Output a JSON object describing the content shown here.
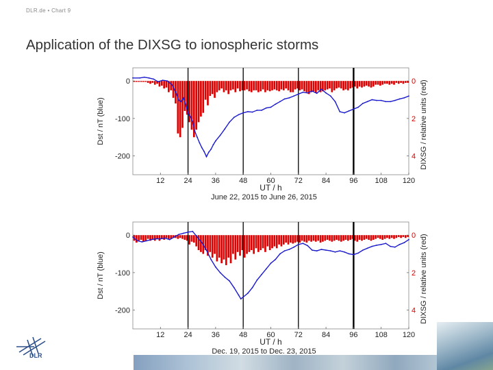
{
  "header": {
    "breadcrumb": "DLR.de  •  Chart 9",
    "title": "Application of the DIXSG to ionospheric storms"
  },
  "colors": {
    "dst": "#1a1acc",
    "dixsg": "#dd0000",
    "event": "#000000"
  },
  "logo": {
    "name": "dlr-logo",
    "text": "DLR"
  },
  "chart_data": [
    {
      "type": "line",
      "subtitle": "June 22, 2015 to June 26, 2015",
      "xlabel": "UT / h",
      "ylabel_left": "Dst / nT (blue)",
      "ylabel_right": "DIXSG / relative units (red)",
      "xlim": [
        0,
        120
      ],
      "xticks": [
        "12",
        "24",
        "36",
        "48",
        "60",
        "72",
        "84",
        "96",
        "108",
        "120"
      ],
      "ylim_left": [
        -250,
        35
      ],
      "yticks_left": [
        "0",
        "-100",
        "-200"
      ],
      "ylim_right": [
        5,
        -0.7
      ],
      "yticks_right": [
        "0",
        "2",
        "4"
      ],
      "event_lines": [
        24,
        48,
        72,
        96
      ],
      "series": [
        {
          "axis": "left",
          "kind": "line",
          "x": [
            0,
            3,
            5,
            7,
            9,
            11,
            13,
            15,
            17,
            18,
            19,
            20,
            21,
            22,
            23,
            24,
            25,
            26,
            27,
            28,
            29,
            30,
            31,
            32,
            33,
            34,
            35,
            36,
            38,
            40,
            42,
            44,
            46,
            48,
            50,
            52,
            54,
            56,
            58,
            60,
            62,
            64,
            66,
            68,
            70,
            72,
            74,
            76,
            78,
            80,
            82,
            84,
            86,
            88,
            90,
            92,
            94,
            96,
            98,
            100,
            102,
            104,
            106,
            108,
            110,
            112,
            114,
            116,
            118,
            120
          ],
          "y": [
            8,
            8,
            10,
            8,
            5,
            -2,
            2,
            0,
            -10,
            -22,
            -35,
            -52,
            -55,
            -45,
            -62,
            -86,
            -95,
            -108,
            -135,
            -150,
            -165,
            -178,
            -188,
            -202,
            -190,
            -182,
            -170,
            -160,
            -145,
            -128,
            -110,
            -97,
            -90,
            -85,
            -82,
            -83,
            -78,
            -78,
            -72,
            -70,
            -62,
            -55,
            -48,
            -45,
            -40,
            -35,
            -30,
            -32,
            -27,
            -33,
            -22,
            -32,
            -40,
            -55,
            -82,
            -85,
            -80,
            -75,
            -70,
            -60,
            -55,
            -50,
            -52,
            -52,
            -55,
            -55,
            -52,
            -48,
            -45,
            -40
          ]
        },
        {
          "axis": "right",
          "kind": "bar",
          "x": [
            1,
            2,
            3,
            4,
            5,
            6,
            7,
            8,
            9,
            10,
            11,
            12,
            13,
            14,
            15,
            16,
            17,
            18,
            19,
            20,
            21,
            22,
            23,
            24,
            25,
            26,
            27,
            28,
            29,
            30,
            31,
            32,
            33,
            34,
            35,
            36,
            37,
            38,
            39,
            40,
            41,
            42,
            43,
            44,
            45,
            46,
            47,
            48,
            49,
            50,
            51,
            52,
            53,
            54,
            55,
            56,
            57,
            58,
            59,
            60,
            61,
            62,
            63,
            64,
            65,
            66,
            67,
            68,
            69,
            70,
            71,
            72,
            73,
            74,
            75,
            76,
            77,
            78,
            79,
            80,
            81,
            82,
            83,
            84,
            85,
            86,
            87,
            88,
            89,
            90,
            91,
            92,
            93,
            94,
            95,
            96,
            97,
            98,
            99,
            100,
            101,
            102,
            103,
            104,
            105,
            106,
            107,
            108,
            109,
            110,
            111,
            112,
            113,
            114,
            115,
            116,
            117,
            118,
            119,
            120
          ],
          "y": [
            0.05,
            0.05,
            0.05,
            0.05,
            0.05,
            0.05,
            0.1,
            0.15,
            0.1,
            0.2,
            0.15,
            0.3,
            0.25,
            0.4,
            0.35,
            0.6,
            0.5,
            0.9,
            1.2,
            2.8,
            3.0,
            2.5,
            1.6,
            1.8,
            2.2,
            2.6,
            3.0,
            2.6,
            2.2,
            1.9,
            1.7,
            1.0,
            1.3,
            0.8,
            0.7,
            0.9,
            0.6,
            0.5,
            0.4,
            0.6,
            0.5,
            0.7,
            0.5,
            0.45,
            0.6,
            0.4,
            0.55,
            0.5,
            0.5,
            0.45,
            0.55,
            0.6,
            0.5,
            0.5,
            0.6,
            0.55,
            0.45,
            0.6,
            0.5,
            0.55,
            0.5,
            0.45,
            0.5,
            0.55,
            0.45,
            0.5,
            0.4,
            0.5,
            0.6,
            0.6,
            0.45,
            0.4,
            0.5,
            0.45,
            0.55,
            0.6,
            0.7,
            0.6,
            0.55,
            0.65,
            0.5,
            0.6,
            0.55,
            0.5,
            0.45,
            0.4,
            0.6,
            0.5,
            0.4,
            0.35,
            0.4,
            0.5,
            0.45,
            0.5,
            0.4,
            0.35,
            0.3,
            0.4,
            0.3,
            0.35,
            0.3,
            0.25,
            0.3,
            0.35,
            0.3,
            0.2,
            0.2,
            0.25,
            0.2,
            0.15,
            0.15,
            0.2,
            0.15,
            0.2,
            0.1,
            0.15,
            0.1,
            0.15,
            0.1,
            0.1
          ]
        }
      ]
    },
    {
      "type": "line",
      "subtitle": "Dec. 19, 2015 to Dec. 23, 2015",
      "xlabel": "UT / h",
      "ylabel_left": "Dst / nT (blue)",
      "ylabel_right": "DIXSG / relative units (red)",
      "xlim": [
        0,
        120
      ],
      "xticks": [
        "12",
        "24",
        "36",
        "48",
        "60",
        "72",
        "84",
        "96",
        "108",
        "120"
      ],
      "ylim_left": [
        -250,
        35
      ],
      "yticks_left": [
        "0",
        "-100",
        "-200"
      ],
      "ylim_right": [
        5,
        -0.7
      ],
      "yticks_right": [
        "0",
        "2",
        "4"
      ],
      "event_lines": [
        24,
        48,
        72,
        96
      ],
      "series": [
        {
          "axis": "left",
          "kind": "line",
          "x": [
            0,
            2,
            4,
            6,
            8,
            10,
            12,
            14,
            16,
            18,
            20,
            22,
            24,
            26,
            28,
            30,
            32,
            34,
            36,
            38,
            40,
            42,
            44,
            46,
            47,
            48,
            50,
            52,
            54,
            56,
            58,
            60,
            62,
            64,
            66,
            68,
            70,
            72,
            74,
            76,
            78,
            80,
            82,
            84,
            86,
            88,
            90,
            92,
            94,
            96,
            98,
            100,
            102,
            104,
            106,
            108,
            110,
            112,
            114,
            116,
            118,
            120
          ],
          "y": [
            -5,
            -15,
            -18,
            -15,
            -12,
            -10,
            -10,
            -8,
            -12,
            -5,
            2,
            5,
            8,
            10,
            -5,
            -20,
            -40,
            -65,
            -85,
            -100,
            -112,
            -122,
            -140,
            -160,
            -170,
            -165,
            -155,
            -140,
            -120,
            -105,
            -90,
            -75,
            -65,
            -50,
            -42,
            -38,
            -32,
            -25,
            -22,
            -28,
            -40,
            -42,
            -38,
            -40,
            -42,
            -45,
            -42,
            -45,
            -50,
            -52,
            -48,
            -40,
            -35,
            -30,
            -27,
            -25,
            -22,
            -30,
            -32,
            -25,
            -20,
            -12
          ]
        },
        {
          "axis": "right",
          "kind": "bar",
          "x": [
            1,
            2,
            3,
            4,
            5,
            6,
            7,
            8,
            9,
            10,
            11,
            12,
            13,
            14,
            15,
            16,
            17,
            18,
            19,
            20,
            21,
            22,
            23,
            24,
            25,
            26,
            27,
            28,
            29,
            30,
            31,
            32,
            33,
            34,
            35,
            36,
            37,
            38,
            39,
            40,
            41,
            42,
            43,
            44,
            45,
            46,
            47,
            48,
            49,
            50,
            51,
            52,
            53,
            54,
            55,
            56,
            57,
            58,
            59,
            60,
            61,
            62,
            63,
            64,
            65,
            66,
            67,
            68,
            69,
            70,
            71,
            72,
            73,
            74,
            75,
            76,
            77,
            78,
            79,
            80,
            81,
            82,
            83,
            84,
            85,
            86,
            87,
            88,
            89,
            90,
            91,
            92,
            93,
            94,
            95,
            96,
            97,
            98,
            99,
            100,
            101,
            102,
            103,
            104,
            105,
            106,
            107,
            108,
            109,
            110,
            111,
            112,
            113,
            114,
            115,
            116,
            117,
            118,
            119,
            120
          ],
          "y": [
            0.3,
            0.4,
            0.3,
            0.25,
            0.35,
            0.3,
            0.2,
            0.3,
            0.25,
            0.3,
            0.2,
            0.3,
            0.2,
            0.25,
            0.15,
            0.2,
            0.2,
            0.15,
            0.15,
            0.2,
            0.15,
            0.2,
            0.25,
            0.3,
            0.5,
            0.35,
            0.4,
            0.6,
            0.8,
            0.9,
            1.0,
            0.8,
            1.1,
            0.9,
            1.2,
            1.0,
            1.4,
            1.2,
            1.5,
            1.3,
            1.6,
            1.2,
            1.5,
            1.0,
            1.3,
            0.9,
            1.1,
            0.8,
            1.2,
            1.0,
            0.9,
            0.8,
            1.0,
            0.7,
            0.9,
            0.8,
            0.7,
            0.9,
            0.6,
            0.8,
            0.7,
            0.6,
            0.7,
            0.5,
            0.6,
            0.5,
            0.4,
            0.5,
            0.4,
            0.45,
            0.4,
            0.35,
            0.4,
            0.3,
            0.35,
            0.4,
            0.3,
            0.35,
            0.3,
            0.35,
            0.3,
            0.4,
            0.35,
            0.3,
            0.25,
            0.3,
            0.35,
            0.3,
            0.25,
            0.3,
            0.35,
            0.3,
            0.25,
            0.3,
            0.25,
            0.2,
            0.3,
            0.35,
            0.25,
            0.3,
            0.25,
            0.2,
            0.25,
            0.3,
            0.25,
            0.2,
            0.15,
            0.2,
            0.25,
            0.2,
            0.15,
            0.2,
            0.15,
            0.2,
            0.15,
            0.1,
            0.15,
            0.1,
            0.15,
            0.1
          ]
        }
      ]
    }
  ]
}
